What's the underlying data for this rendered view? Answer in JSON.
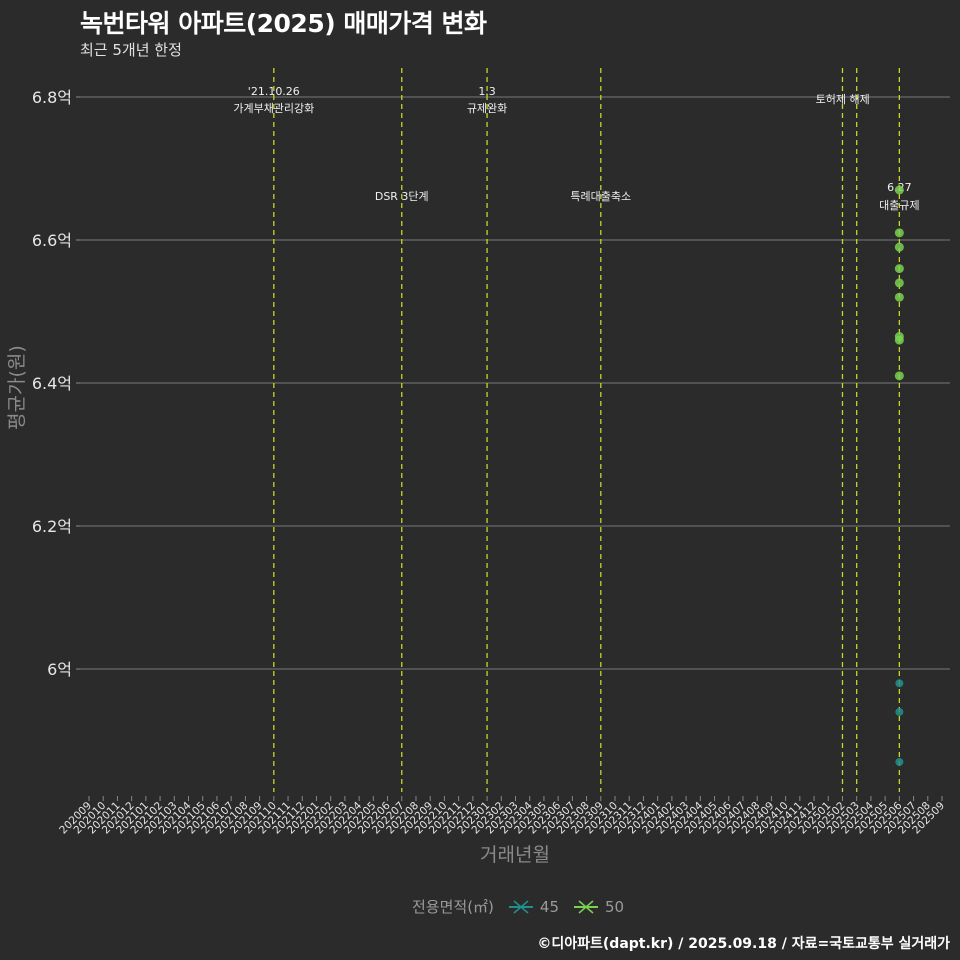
{
  "header": {
    "title": "녹번타워 아파트(2025) 매매가격 변화",
    "subtitle": "최근 5개년 한정"
  },
  "axes": {
    "x_title": "거래년월",
    "y_title": "평균가(원)"
  },
  "legend": {
    "title": "전용면적(㎡)",
    "items": [
      {
        "label": "45",
        "color": "#21908c"
      },
      {
        "label": "50",
        "color": "#7ad151"
      }
    ]
  },
  "footer": "©디아파트(dapt.kr) / 2025.09.18 / 자료=국토교통부 실거래가",
  "colors": {
    "background": "#2b2b2b",
    "grid": "#7a7a7a",
    "event_line": "#c8d42a",
    "series_45": "#21908c",
    "series_50": "#7ad151"
  },
  "chart_data": {
    "type": "scatter",
    "title": "녹번타워 아파트(2025) 매매가격 변화",
    "subtitle": "최근 5개년 한정",
    "xlabel": "거래년월",
    "ylabel": "평균가(원)",
    "x_ticks": [
      "202009",
      "202010",
      "202011",
      "202012",
      "202101",
      "202102",
      "202103",
      "202104",
      "202105",
      "202106",
      "202107",
      "202108",
      "202109",
      "202110",
      "202111",
      "202112",
      "202201",
      "202202",
      "202203",
      "202204",
      "202205",
      "202206",
      "202207",
      "202208",
      "202209",
      "202210",
      "202211",
      "202212",
      "202301",
      "202302",
      "202303",
      "202304",
      "202305",
      "202306",
      "202307",
      "202308",
      "202309",
      "202310",
      "202311",
      "202312",
      "202401",
      "202402",
      "202403",
      "202404",
      "202405",
      "202406",
      "202407",
      "202408",
      "202409",
      "202410",
      "202411",
      "202412",
      "202501",
      "202502",
      "202503",
      "202504",
      "202505",
      "202506",
      "202507",
      "202508",
      "202509"
    ],
    "y_ticks": [
      {
        "value": 6.0,
        "label": "6억"
      },
      {
        "value": 6.2,
        "label": "6.2억"
      },
      {
        "value": 6.4,
        "label": "6.4억"
      },
      {
        "value": 6.6,
        "label": "6.6억"
      },
      {
        "value": 6.8,
        "label": "6.8억"
      }
    ],
    "ylim": [
      5.82,
      6.84
    ],
    "grid": "horizontal major only",
    "legend_position": "bottom",
    "series": [
      {
        "name": "45",
        "unit": "억",
        "points": [
          {
            "x": "202506",
            "y": 5.98
          },
          {
            "x": "202506",
            "y": 5.94
          },
          {
            "x": "202506",
            "y": 5.87
          }
        ]
      },
      {
        "name": "50",
        "unit": "억",
        "points": [
          {
            "x": "202506",
            "y": 6.67
          },
          {
            "x": "202506",
            "y": 6.61
          },
          {
            "x": "202506",
            "y": 6.59
          },
          {
            "x": "202506",
            "y": 6.56
          },
          {
            "x": "202506",
            "y": 6.54
          },
          {
            "x": "202506",
            "y": 6.52
          },
          {
            "x": "202506",
            "y": 6.465
          },
          {
            "x": "202506",
            "y": 6.46
          },
          {
            "x": "202506",
            "y": 6.41
          }
        ]
      }
    ],
    "annotations": [
      {
        "x": "202110",
        "line1": "'21.10.26",
        "line2": "가계부채관리강화",
        "row": "top"
      },
      {
        "x": "202207",
        "line1": "",
        "line2": "DSR 3단계",
        "row": "mid"
      },
      {
        "x": "202301",
        "line1": "1.3",
        "line2": "규제완화",
        "row": "top"
      },
      {
        "x": "202309",
        "line1": "",
        "line2": "특례대출축소",
        "row": "mid"
      },
      {
        "x": "202502",
        "line1": "",
        "line2": "",
        "row": "none"
      },
      {
        "x": "202503",
        "line1": "",
        "line2": "토허제 해제",
        "row": "top-single"
      },
      {
        "x": "202506",
        "line1": "6.27",
        "line2": "대출규제",
        "row": "mid"
      }
    ]
  }
}
